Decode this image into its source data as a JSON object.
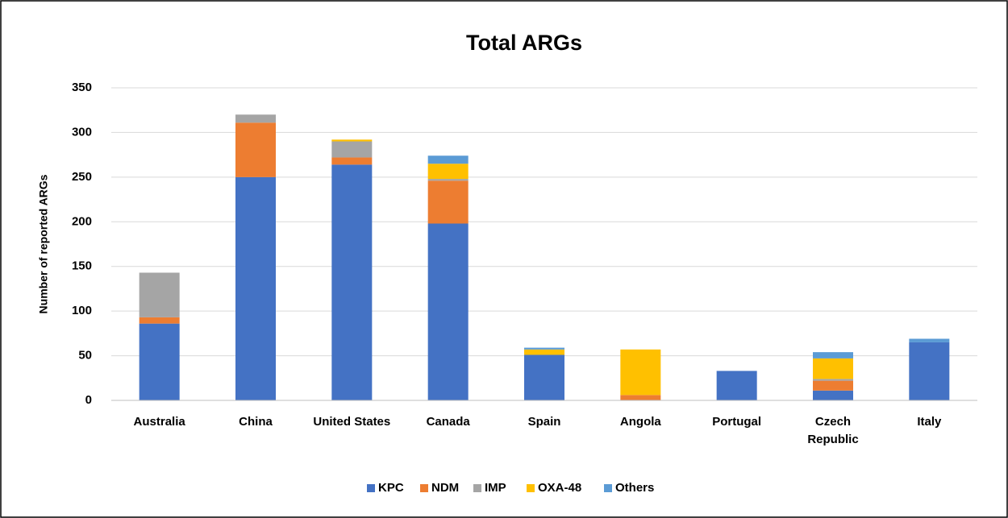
{
  "chart_data": {
    "type": "stacked_bar",
    "title": "Total ARGs",
    "y_label": "Number of reported ARGs",
    "categories": [
      "Australia",
      "China",
      "United States",
      "Canada",
      "Spain",
      "Angola",
      "Portugal",
      "Czech Republic",
      "Italy"
    ],
    "series": [
      {
        "name": "KPC",
        "color": "#4472c4",
        "values": [
          86,
          250,
          264,
          198,
          51,
          0,
          33,
          11,
          65
        ]
      },
      {
        "name": "NDM",
        "color": "#ed7d31",
        "values": [
          7,
          61,
          8,
          48,
          0,
          6,
          0,
          11,
          0
        ]
      },
      {
        "name": "IMP",
        "color": "#a5a5a5",
        "values": [
          50,
          9,
          18,
          2,
          0,
          0,
          0,
          2,
          0
        ]
      },
      {
        "name": "OXA-48",
        "color": "#ffc000",
        "values": [
          0,
          0,
          2,
          17,
          6,
          51,
          0,
          23,
          0
        ]
      },
      {
        "name": "Others",
        "color": "#5b9bd5",
        "values": [
          0,
          0,
          0,
          9,
          2,
          0,
          0,
          7,
          4
        ]
      }
    ],
    "ylim": [
      0,
      350
    ],
    "yticks": [
      0,
      50,
      100,
      150,
      200,
      250,
      300,
      350
    ],
    "grid": true,
    "legend": "bottom"
  }
}
